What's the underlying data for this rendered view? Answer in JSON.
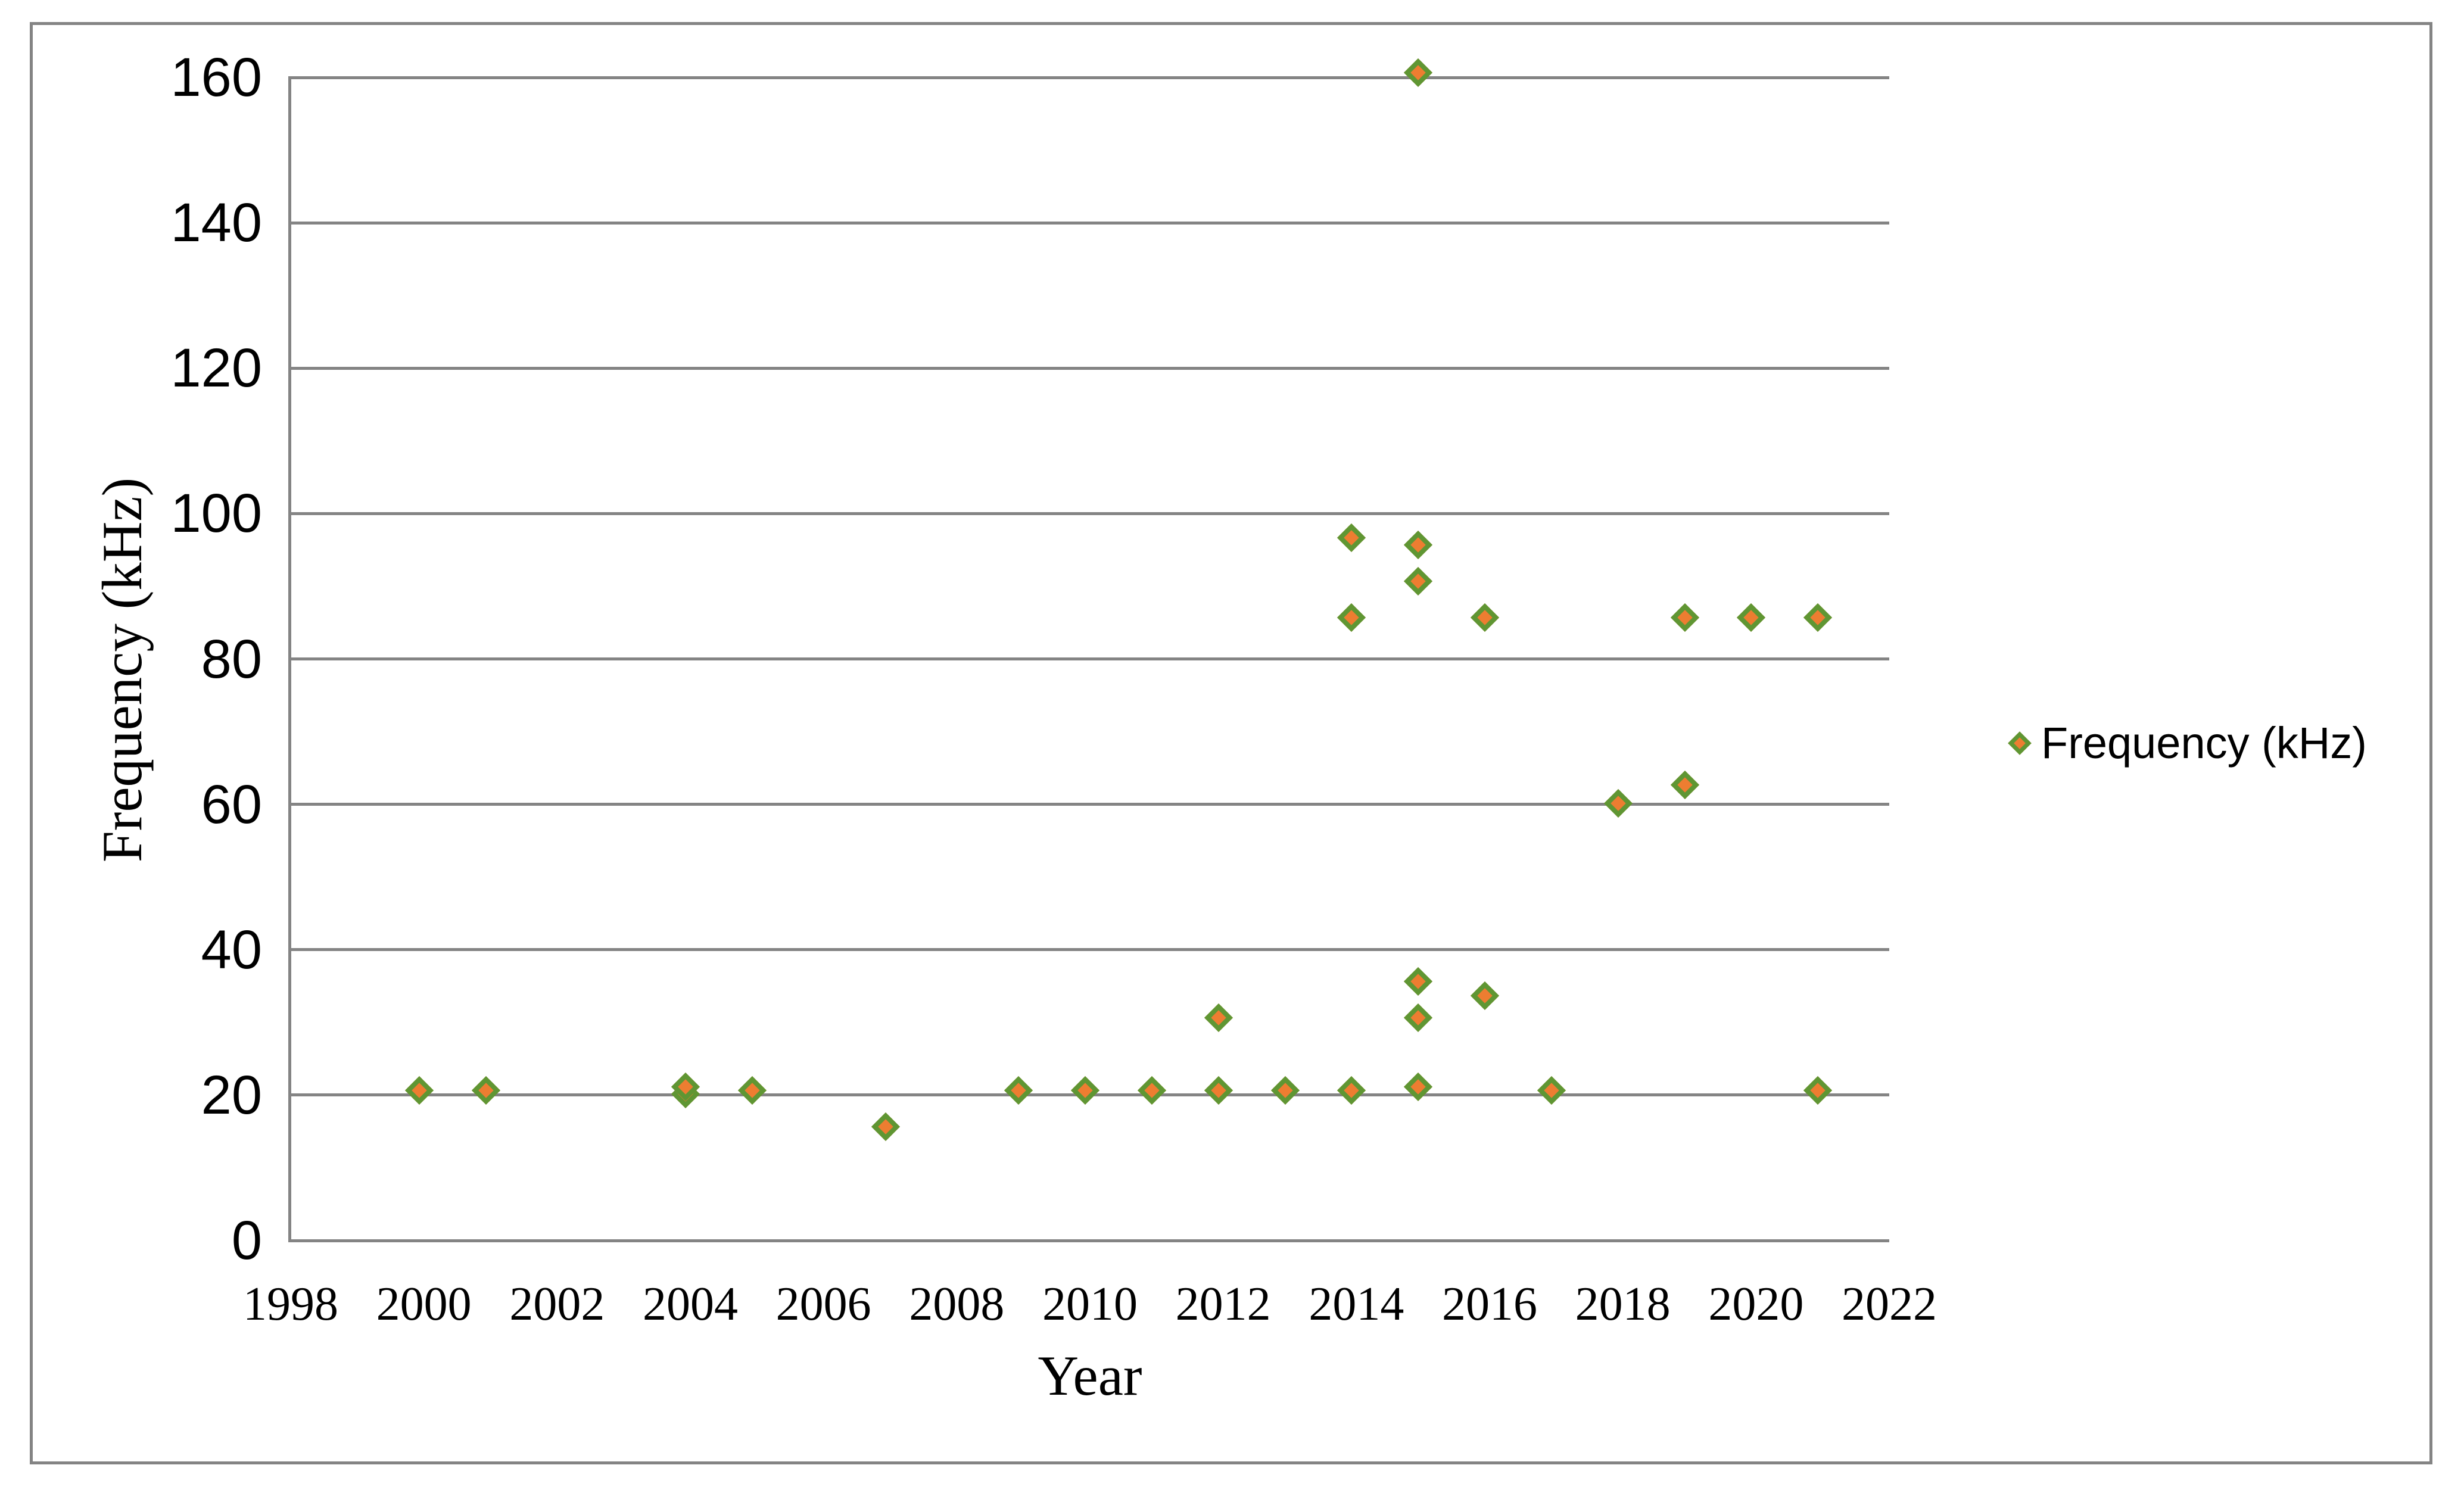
{
  "figure": {
    "background": "#FFFFFF",
    "frame_border_color": "#848484",
    "grid_color": "#848484",
    "axis_color": "#848484",
    "text_color": "#000000"
  },
  "legend": {
    "label": "Frequency (kHz)",
    "marker_icon": "diamond-icon",
    "marker_fill": "#ED7D31",
    "marker_stroke": "#5F9633",
    "position": "right"
  },
  "chart_data": {
    "type": "scatter",
    "title": "",
    "xlabel": "Year",
    "ylabel": "Frequency (kHz)",
    "xlim": [
      1998,
      2022
    ],
    "ylim": [
      0,
      160
    ],
    "xticks": [
      1998,
      2000,
      2002,
      2004,
      2006,
      2008,
      2010,
      2012,
      2014,
      2016,
      2018,
      2020,
      2022
    ],
    "yticks": [
      0,
      20,
      40,
      60,
      80,
      100,
      120,
      140,
      160
    ],
    "grid": "horizontal",
    "legend_position": "right",
    "series": [
      {
        "name": "Frequency (kHz)",
        "marker": "diamond",
        "marker_fill": "#ED7D31",
        "marker_stroke": "#5F9633",
        "points": [
          {
            "x": 2000,
            "y": 20
          },
          {
            "x": 2001,
            "y": 20
          },
          {
            "x": 2004,
            "y": 19.5
          },
          {
            "x": 2004,
            "y": 20.5
          },
          {
            "x": 2005,
            "y": 20
          },
          {
            "x": 2007,
            "y": 15
          },
          {
            "x": 2009,
            "y": 20
          },
          {
            "x": 2010,
            "y": 20
          },
          {
            "x": 2011,
            "y": 20
          },
          {
            "x": 2012,
            "y": 20
          },
          {
            "x": 2012,
            "y": 30
          },
          {
            "x": 2013,
            "y": 20
          },
          {
            "x": 2014,
            "y": 20
          },
          {
            "x": 2014,
            "y": 85
          },
          {
            "x": 2014,
            "y": 96
          },
          {
            "x": 2015,
            "y": 20.5
          },
          {
            "x": 2015,
            "y": 35
          },
          {
            "x": 2015,
            "y": 30
          },
          {
            "x": 2015,
            "y": 95
          },
          {
            "x": 2015,
            "y": 90
          },
          {
            "x": 2015,
            "y": 160
          },
          {
            "x": 2016,
            "y": 33
          },
          {
            "x": 2016,
            "y": 85
          },
          {
            "x": 2017,
            "y": 20
          },
          {
            "x": 2018,
            "y": 59.5
          },
          {
            "x": 2019,
            "y": 62
          },
          {
            "x": 2019,
            "y": 85
          },
          {
            "x": 2020,
            "y": 85
          },
          {
            "x": 2021,
            "y": 85
          },
          {
            "x": 2021,
            "y": 20
          }
        ]
      }
    ]
  }
}
